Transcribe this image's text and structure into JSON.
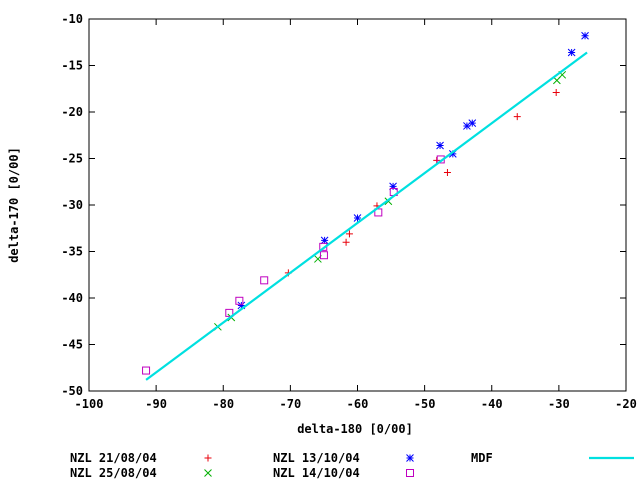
{
  "chart_data": {
    "type": "scatter",
    "xlabel": "delta-180 [0/00]",
    "ylabel": "delta-170 [0/00]",
    "xlim": [
      -100,
      -20
    ],
    "ylim": [
      -50,
      -10
    ],
    "xticks": [
      -100,
      -90,
      -80,
      -70,
      -60,
      -50,
      -40,
      -30,
      -20
    ],
    "yticks": [
      -50,
      -45,
      -40,
      -35,
      -30,
      -25,
      -20,
      -15,
      -10
    ],
    "xtick_labels": [
      "-100",
      "-90",
      "-80",
      "-70",
      "-60",
      "-50",
      "-40",
      "-30",
      "-20"
    ],
    "ytick_labels": [
      "-50",
      "-45",
      "-40",
      "-35",
      "-30",
      "-25",
      "-20",
      "-15",
      "-10"
    ],
    "grid": false,
    "legend_position": "bottom",
    "series": [
      {
        "name": "NZL 21/08/04",
        "marker": "plus",
        "color": "#e8000b",
        "points": [
          [
            -70.3,
            -37.3
          ],
          [
            -61.7,
            -34.0
          ],
          [
            -61.2,
            -33.1
          ],
          [
            -57.1,
            -30.1
          ],
          [
            -48.2,
            -25.2
          ],
          [
            -46.6,
            -26.5
          ],
          [
            -36.2,
            -20.5
          ],
          [
            -30.4,
            -17.9
          ]
        ]
      },
      {
        "name": "NZL 25/08/04",
        "marker": "cross",
        "color": "#00b000",
        "points": [
          [
            -80.8,
            -43.1
          ],
          [
            -78.8,
            -42.1
          ],
          [
            -65.9,
            -35.8
          ],
          [
            -55.4,
            -29.6
          ],
          [
            -30.3,
            -16.6
          ],
          [
            -29.5,
            -16.0
          ]
        ]
      },
      {
        "name": "NZL 13/10/04",
        "marker": "star",
        "color": "#0000ff",
        "points": [
          [
            -77.3,
            -40.8
          ],
          [
            -64.9,
            -33.8
          ],
          [
            -60.0,
            -31.4
          ],
          [
            -54.7,
            -28.0
          ],
          [
            -47.7,
            -23.6
          ],
          [
            -45.8,
            -24.5
          ],
          [
            -43.7,
            -21.5
          ],
          [
            -42.9,
            -21.2
          ],
          [
            -28.1,
            -13.6
          ],
          [
            -26.1,
            -11.8
          ]
        ]
      },
      {
        "name": "NZL 14/10/04",
        "marker": "square",
        "color": "#c000c0",
        "points": [
          [
            -91.5,
            -47.8
          ],
          [
            -79.1,
            -41.6
          ],
          [
            -77.6,
            -40.3
          ],
          [
            -73.9,
            -38.1
          ],
          [
            -65.1,
            -34.5
          ],
          [
            -65.0,
            -35.4
          ],
          [
            -56.9,
            -30.8
          ],
          [
            -54.6,
            -28.6
          ],
          [
            -47.6,
            -25.1
          ]
        ]
      },
      {
        "name": "MDF",
        "marker": "line",
        "color": "#00e0e0",
        "points": [
          [
            -91.5,
            -48.8
          ],
          [
            -25.8,
            -13.6
          ]
        ]
      }
    ]
  }
}
